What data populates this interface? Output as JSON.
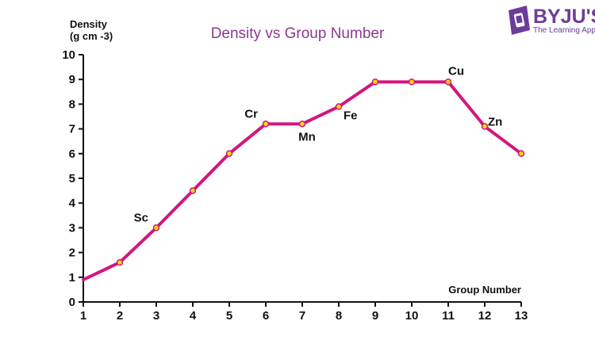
{
  "brand": {
    "name": "BYJU'S",
    "tagline": "The Learning App",
    "color": "#6a3d9a"
  },
  "chart_data": {
    "type": "line",
    "title": "Density vs Group Number",
    "ylabel_line1": "Density",
    "ylabel_line2": "(g cm -3)",
    "xlabel": "Group Number",
    "x": [
      1,
      2,
      3,
      4,
      5,
      6,
      7,
      8,
      9,
      10,
      11,
      12,
      13
    ],
    "xlim": [
      1,
      13
    ],
    "ylim": [
      0,
      10
    ],
    "x_ticks": [
      1,
      2,
      3,
      4,
      5,
      6,
      7,
      8,
      9,
      10,
      11,
      12,
      13
    ],
    "y_ticks": [
      0,
      1,
      2,
      3,
      4,
      5,
      6,
      7,
      8,
      9,
      10
    ],
    "grid": false,
    "series": [
      {
        "color": "#d4157f",
        "marker_color": "#f5d90a",
        "points": [
          {
            "x": 1,
            "y": 0.9,
            "marker": false
          },
          {
            "x": 2,
            "y": 1.6,
            "marker": true
          },
          {
            "x": 3,
            "y": 3.0,
            "marker": true
          },
          {
            "x": 4,
            "y": 4.5,
            "marker": true
          },
          {
            "x": 5,
            "y": 6.0,
            "marker": true
          },
          {
            "x": 6,
            "y": 7.2,
            "marker": true
          },
          {
            "x": 7,
            "y": 7.2,
            "marker": true
          },
          {
            "x": 8,
            "y": 7.9,
            "marker": true
          },
          {
            "x": 9,
            "y": 8.9,
            "marker": true
          },
          {
            "x": 10,
            "y": 8.9,
            "marker": true
          },
          {
            "x": 11,
            "y": 8.9,
            "marker": true
          },
          {
            "x": 12,
            "y": 7.1,
            "marker": true
          },
          {
            "x": 13,
            "y": 6.0,
            "marker": true
          }
        ]
      }
    ],
    "annotations": [
      {
        "text": "Sc",
        "x": 3,
        "y": 3.0,
        "pos": "upper-left"
      },
      {
        "text": "Cr",
        "x": 6,
        "y": 7.2,
        "pos": "upper-left"
      },
      {
        "text": "Mn",
        "x": 7,
        "y": 7.2,
        "pos": "below"
      },
      {
        "text": "Fe",
        "x": 8,
        "y": 7.9,
        "pos": "lower-right"
      },
      {
        "text": "Cu",
        "x": 11,
        "y": 8.9,
        "pos": "above-right"
      },
      {
        "text": "Zn",
        "x": 12,
        "y": 7.1,
        "pos": "upper-right"
      }
    ]
  }
}
